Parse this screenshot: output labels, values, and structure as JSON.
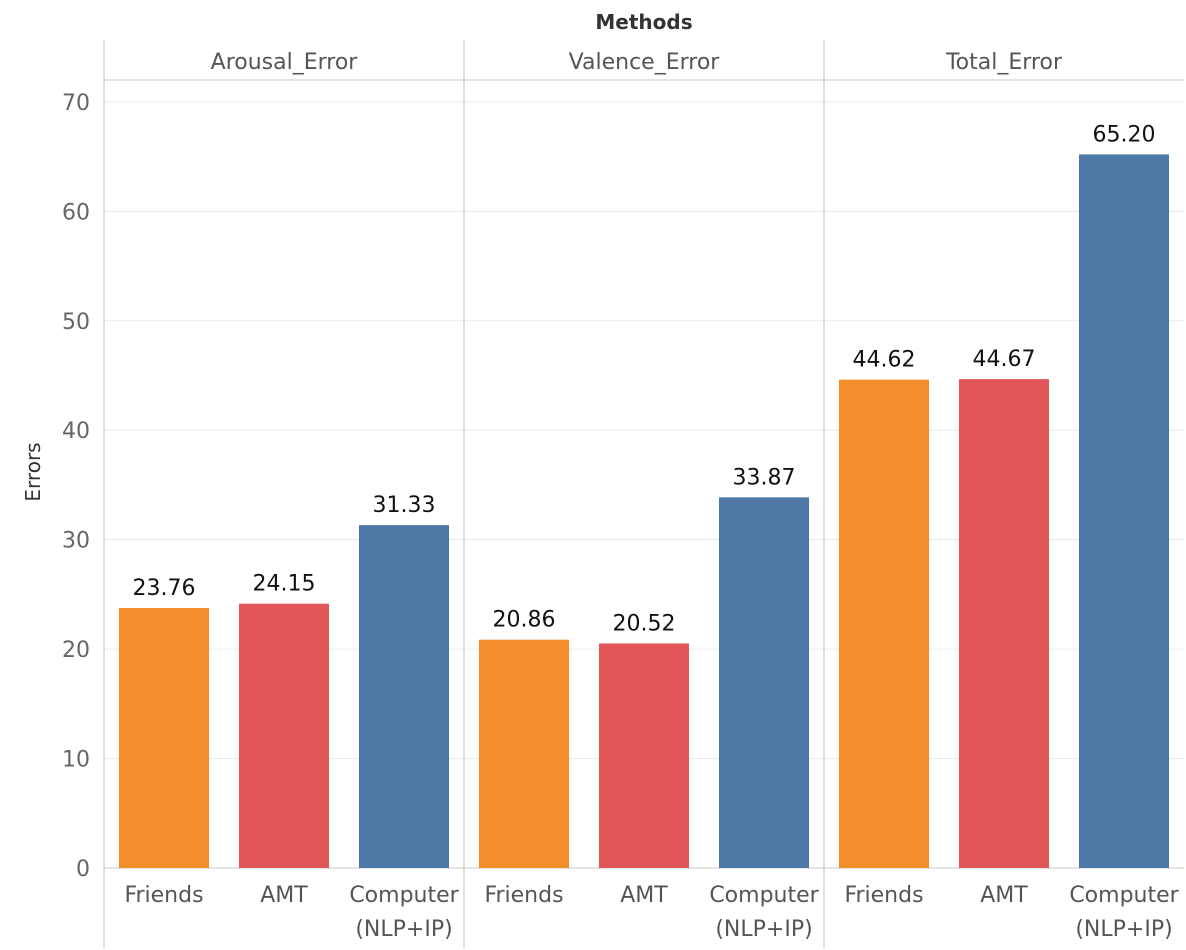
{
  "chart_data": {
    "type": "bar",
    "title": "Methods",
    "ylabel": "Errors",
    "ylim": [
      0,
      72
    ],
    "yticks": [
      0,
      10,
      20,
      30,
      40,
      50,
      60,
      70
    ],
    "grid": true,
    "colors": {
      "Friends": "#F28E2B",
      "AMT": "#E15759",
      "Computer": "#4E79A7"
    },
    "panels": [
      {
        "name": "Arousal_Error",
        "bars": [
          {
            "category": "Friends",
            "label_lines": [
              "Friends"
            ],
            "value": 23.76,
            "value_label": "23.76"
          },
          {
            "category": "AMT",
            "label_lines": [
              "AMT"
            ],
            "value": 24.15,
            "value_label": "24.15"
          },
          {
            "category": "Computer",
            "label_lines": [
              "Computer",
              "(NLP+IP)"
            ],
            "value": 31.33,
            "value_label": "31.33"
          }
        ]
      },
      {
        "name": "Valence_Error",
        "bars": [
          {
            "category": "Friends",
            "label_lines": [
              "Friends"
            ],
            "value": 20.86,
            "value_label": "20.86"
          },
          {
            "category": "AMT",
            "label_lines": [
              "AMT"
            ],
            "value": 20.52,
            "value_label": "20.52"
          },
          {
            "category": "Computer",
            "label_lines": [
              "Computer",
              "(NLP+IP)"
            ],
            "value": 33.87,
            "value_label": "33.87"
          }
        ]
      },
      {
        "name": "Total_Error",
        "bars": [
          {
            "category": "Friends",
            "label_lines": [
              "Friends"
            ],
            "value": 44.62,
            "value_label": "44.62"
          },
          {
            "category": "AMT",
            "label_lines": [
              "AMT"
            ],
            "value": 44.67,
            "value_label": "44.67"
          },
          {
            "category": "Computer",
            "label_lines": [
              "Computer",
              "(NLP+IP)"
            ],
            "value": 65.2,
            "value_label": "65.20"
          }
        ]
      }
    ]
  }
}
